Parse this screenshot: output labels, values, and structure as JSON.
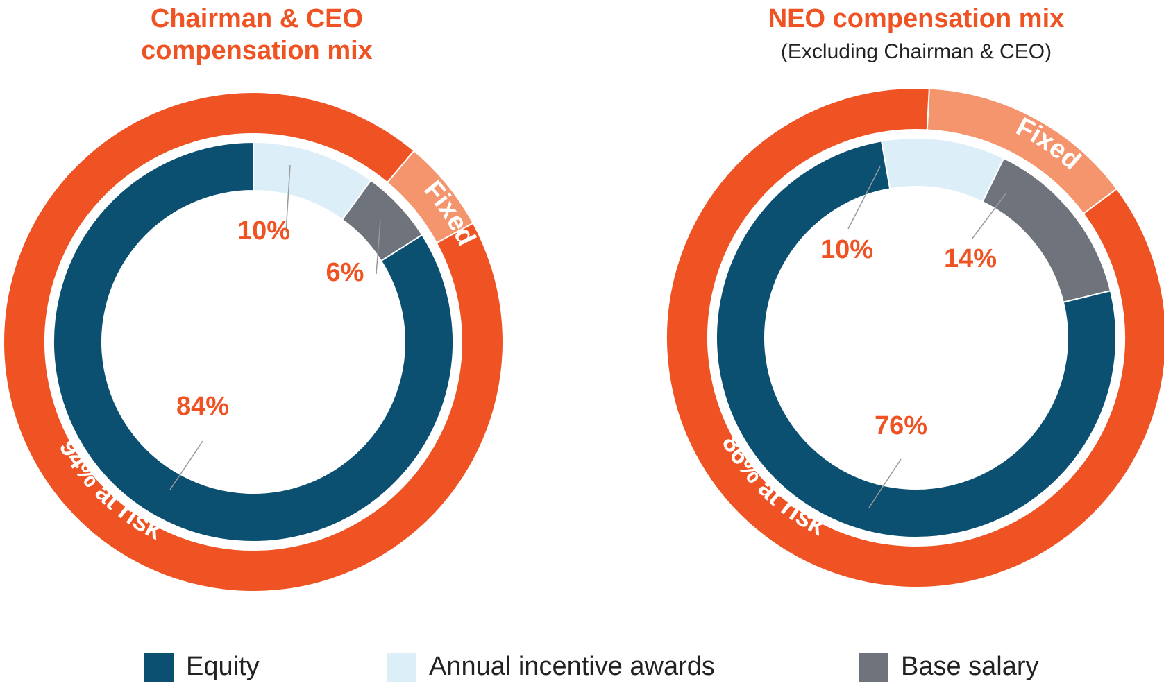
{
  "chart_data": [
    {
      "type": "pie",
      "title": "Chairman & CEO compensation mix",
      "title_lines": [
        "Chairman & CEO",
        "compensation mix"
      ],
      "inner_ring": [
        {
          "name": "Equity",
          "value": 84,
          "label": "84%"
        },
        {
          "name": "Annual incentive awards",
          "value": 10,
          "label": "10%"
        },
        {
          "name": "Base salary",
          "value": 6,
          "label": "6%"
        }
      ],
      "outer_ring": [
        {
          "name": "at risk",
          "value": 94,
          "label": "94% at risk"
        },
        {
          "name": "Fixed",
          "value": 6,
          "label": "Fixed"
        }
      ]
    },
    {
      "type": "pie",
      "title": "NEO compensation mix",
      "subtitle": "(Excluding Chairman & CEO)",
      "inner_ring": [
        {
          "name": "Equity",
          "value": 76,
          "label": "76%"
        },
        {
          "name": "Annual incentive awards",
          "value": 10,
          "label": "10%"
        },
        {
          "name": "Base salary",
          "value": 14,
          "label": "14%"
        }
      ],
      "outer_ring": [
        {
          "name": "at risk",
          "value": 86,
          "label": "86% at risk"
        },
        {
          "name": "Fixed",
          "value": 14,
          "label": "Fixed"
        }
      ]
    }
  ],
  "legend": [
    {
      "label": "Equity",
      "color": "#0b5071"
    },
    {
      "label": "Annual incentive awards",
      "color": "#dceff8"
    },
    {
      "label": "Base salary",
      "color": "#6f737c"
    }
  ],
  "colors": {
    "at_risk": "#ef5323",
    "fixed": "#f4956d",
    "equity": "#0b5071",
    "annual_incentive": "#dceff8",
    "base_salary": "#6f737c",
    "label_text": "#ef5323"
  }
}
